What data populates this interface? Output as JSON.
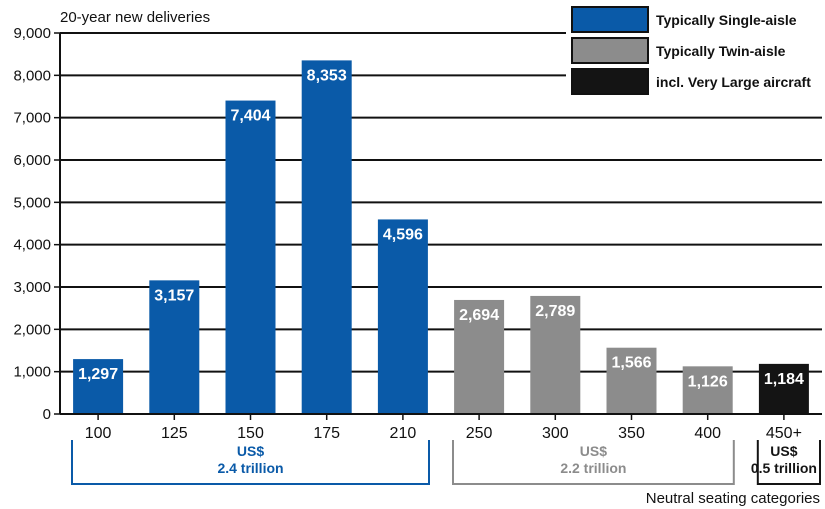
{
  "chart_data": {
    "type": "bar",
    "ylabel": "20-year new deliveries",
    "xlabel": "Neutral seating categories",
    "ylim": [
      0,
      9000
    ],
    "yticks": [
      0,
      1000,
      2000,
      3000,
      4000,
      5000,
      6000,
      7000,
      8000,
      9000
    ],
    "ytick_labels": [
      "0",
      "1,000",
      "2,000",
      "3,000",
      "4,000",
      "5,000",
      "6,000",
      "7,000",
      "8,000",
      "9,000"
    ],
    "grid": "horizontal",
    "legend_position": "top-right",
    "categories": [
      "100",
      "125",
      "150",
      "175",
      "210",
      "250",
      "300",
      "350",
      "400",
      "450+"
    ],
    "values": [
      1297,
      3157,
      7404,
      8353,
      4596,
      2694,
      2789,
      1566,
      1126,
      1184
    ],
    "value_labels": [
      "1,297",
      "3,157",
      "7,404",
      "8,353",
      "4,596",
      "2,694",
      "2,789",
      "1,566",
      "1,126",
      "1,184"
    ],
    "bar_types": [
      "single",
      "single",
      "single",
      "single",
      "single",
      "twin",
      "twin",
      "twin",
      "twin",
      "vla"
    ],
    "legend": [
      {
        "key": "single",
        "label": "Typically Single-aisle",
        "color": "#0a5aa8"
      },
      {
        "key": "twin",
        "label": "Typically Twin-aisle",
        "color": "#8c8c8c"
      },
      {
        "key": "vla",
        "label": "incl. Very Large aircraft",
        "color": "#141414"
      }
    ],
    "groups": [
      {
        "from": 0,
        "to": 4,
        "line1": "US$",
        "line2": "2.4 trillion",
        "color": "#0a5aa8"
      },
      {
        "from": 5,
        "to": 8,
        "line1": "US$",
        "line2": "2.2 trillion",
        "color": "#8c8c8c"
      },
      {
        "from": 9,
        "to": 9,
        "line1": "US$",
        "line2": "0.5 trillion",
        "color": "#141414"
      }
    ]
  }
}
